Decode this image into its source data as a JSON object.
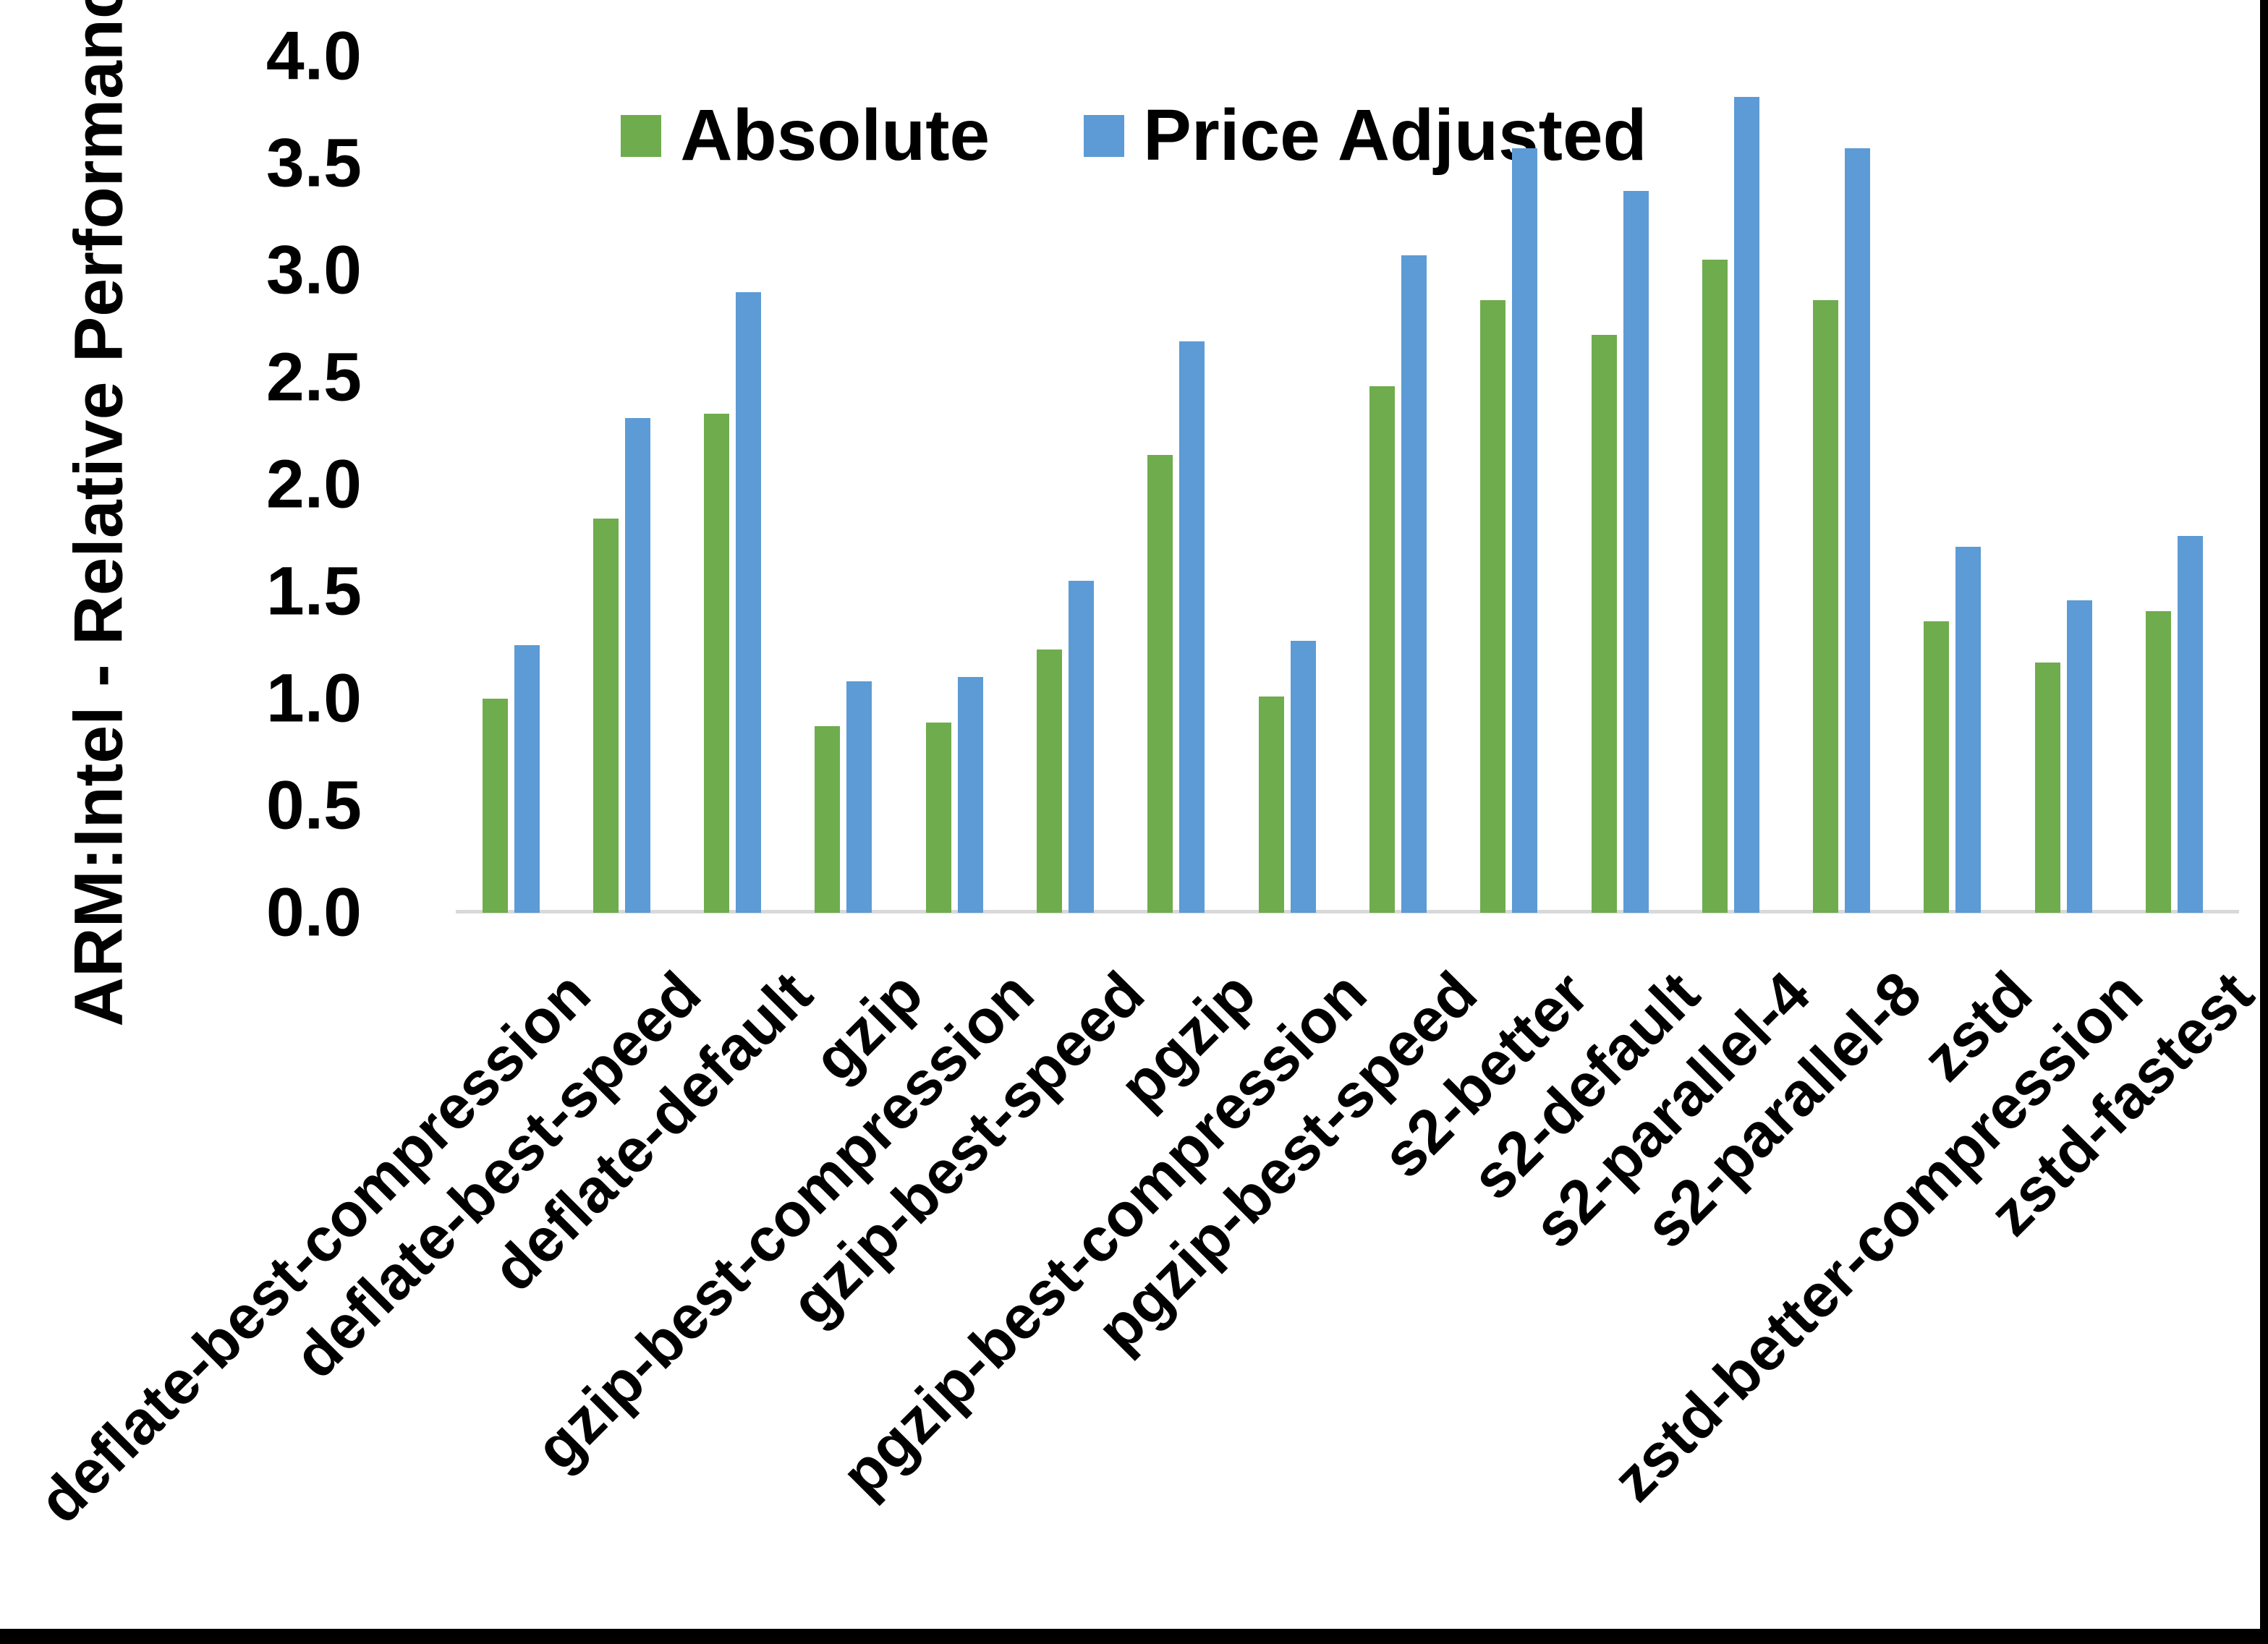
{
  "colors": {
    "background": "#FFFFFF",
    "axis_line": "#D9D9D9",
    "text": "#000000",
    "frame_border": "#000000",
    "series_absolute": "#6FAC4D",
    "series_price_adjusted": "#5C9BD5"
  },
  "chart_data": {
    "type": "bar",
    "title": "",
    "xlabel": "",
    "ylabel": "ARM:Intel - Relative Performance",
    "ylim": [
      0.0,
      4.0
    ],
    "ytick_step": 0.5,
    "ytick_values": [
      0.0,
      0.5,
      1.0,
      1.5,
      2.0,
      2.5,
      3.0,
      3.5,
      4.0
    ],
    "ytick_labels": [
      "0.0",
      "0.5",
      "1.0",
      "1.5",
      "2.0",
      "2.5",
      "3.0",
      "3.5",
      "4.0"
    ],
    "grid": false,
    "legend_position": "top-center",
    "x_label_rotation_deg": 45,
    "categories": [
      "deflate-best-compression",
      "deflate-best-speed",
      "deflate-default",
      "gzip",
      "gzip-best-compression",
      "gzip-best-speed",
      "pgzip",
      "pgzip-best-compression",
      "pgzip-best-speed",
      "s2-better",
      "s2-default",
      "s2-parallel-4",
      "s2-parallel-8",
      "zstd",
      "zstd-better-compression",
      "zstd-fastest"
    ],
    "series": [
      {
        "name": "Absolute",
        "color": "#6FAC4D",
        "values": [
          1.0,
          1.84,
          2.33,
          0.87,
          0.89,
          1.23,
          2.14,
          1.01,
          2.46,
          2.86,
          2.7,
          3.05,
          2.86,
          1.36,
          1.17,
          1.41
        ]
      },
      {
        "name": "Price Adjusted",
        "color": "#5C9BD5",
        "values": [
          1.25,
          2.31,
          2.9,
          1.08,
          1.1,
          1.55,
          2.67,
          1.27,
          3.07,
          3.57,
          3.37,
          3.81,
          3.57,
          1.71,
          1.46,
          1.76
        ]
      }
    ]
  }
}
